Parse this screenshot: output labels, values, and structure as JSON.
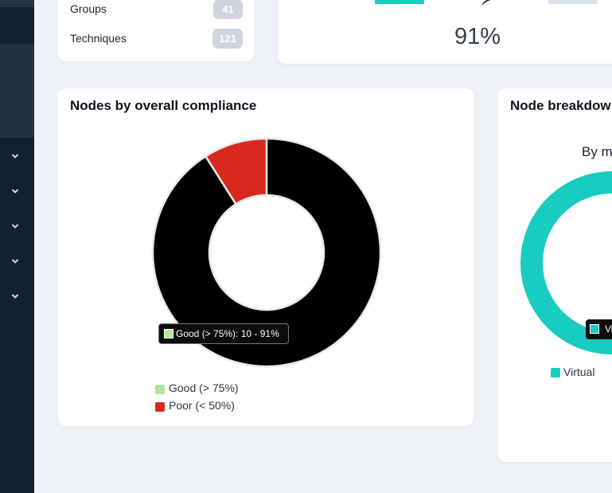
{
  "summary": {
    "groups_label": "Groups",
    "groups_count": "41",
    "techniques_label": "Techniques",
    "techniques_count": "121"
  },
  "global_compliance": {
    "value": "91%"
  },
  "compliance_card": {
    "title": "Nodes by overall compliance",
    "tooltip": "Good (> 75%): 10 - 91%",
    "legend": [
      {
        "label": "Good (> 75%)",
        "color": "#b4e5a2"
      },
      {
        "label": "Poor (< 50%)",
        "color": "#d9291e"
      }
    ]
  },
  "chart_data": {
    "type": "pie",
    "title": "Nodes by overall compliance",
    "slices": [
      {
        "name": "Good (> 75%)",
        "count": 10,
        "percent": 91,
        "color": "#000000"
      },
      {
        "name": "Poor (< 50%)",
        "count": 1,
        "percent": 9,
        "color": "#d9291e"
      }
    ]
  },
  "breakdown_card": {
    "title": "Node breakdow",
    "subtitle": "By m",
    "tooltip": "Vi",
    "legend_label": "Virtual",
    "color": "#18ccc2"
  },
  "colors": {
    "sidebar": "#13202e",
    "badge": "#cfd4dd",
    "teal": "#18ccc2"
  }
}
